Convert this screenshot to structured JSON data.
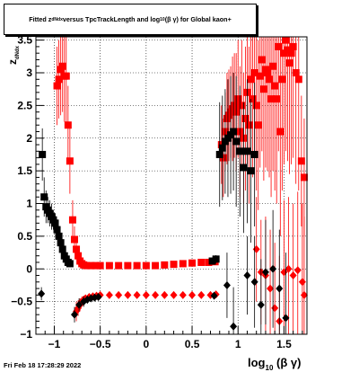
{
  "title": {
    "prefix": "Fitted  z",
    "sub": "dNdx",
    "mid": "  versus TpcTrackLength and log",
    "sub2": "10",
    "suffix": " (β γ) for Global kaon+"
  },
  "footer": "Fri Feb 18 17:28:29 2022",
  "colors": {
    "red": "#ff0000",
    "black": "#000000",
    "grid": "#000000"
  },
  "chart_data": {
    "type": "scatter",
    "title": "Fitted z_dNdx versus TpcTrackLength and log10(β γ) for Global kaon+",
    "xlabel": {
      "main": "log",
      "sub": "10",
      "rest": "(β γ)"
    },
    "ylabel": {
      "main": "z",
      "sub": "dNdx"
    },
    "xlim": [
      -1.2,
      1.75
    ],
    "ylim": [
      -1.0,
      3.55
    ],
    "xticks": [
      -1,
      -0.5,
      0,
      0.5,
      1,
      1.5
    ],
    "xtick_labels": [
      "−1",
      "−0.5",
      "0",
      "0.5",
      "1",
      "1.5"
    ],
    "yticks": [
      -1,
      -0.5,
      0,
      0.5,
      1,
      1.5,
      2,
      2.5,
      3,
      3.5
    ],
    "ytick_labels": [
      "−1",
      "−0.5",
      "0",
      "0.5",
      "1",
      "1.5",
      "2",
      "2.5",
      "3",
      "3.5"
    ],
    "grid": true,
    "series": [
      {
        "color": "#ff0000",
        "marker": "square",
        "points": [
          [
            -0.97,
            2.8,
            0.6
          ],
          [
            -0.95,
            2.9,
            0.6
          ],
          [
            -0.93,
            3.05,
            0.7
          ],
          [
            -0.91,
            3.1,
            0.7
          ],
          [
            -0.89,
            2.95,
            0.7
          ],
          [
            -0.87,
            2.95,
            0.7
          ],
          [
            -0.85,
            2.2,
            0.6
          ],
          [
            -0.83,
            1.65,
            0.5
          ],
          [
            -0.8,
            0.75,
            0.3
          ],
          [
            -0.78,
            0.45,
            0.2
          ],
          [
            -0.76,
            0.3,
            0.15
          ],
          [
            -0.74,
            0.2,
            0.1
          ],
          [
            -0.72,
            0.12,
            0.08
          ],
          [
            -0.7,
            0.08,
            0.06
          ],
          [
            -0.68,
            0.06,
            0.05
          ],
          [
            -0.65,
            0.05,
            0.04
          ],
          [
            -0.6,
            0.05,
            0.03
          ],
          [
            -0.55,
            0.05,
            0.02
          ],
          [
            -0.5,
            0.05,
            0.02
          ],
          [
            -0.4,
            0.05,
            0.02
          ],
          [
            -0.3,
            0.05,
            0.02
          ],
          [
            -0.2,
            0.05,
            0.02
          ],
          [
            -0.1,
            0.05,
            0.02
          ],
          [
            0.0,
            0.05,
            0.02
          ],
          [
            0.1,
            0.05,
            0.02
          ],
          [
            0.2,
            0.06,
            0.02
          ],
          [
            0.3,
            0.07,
            0.02
          ],
          [
            0.4,
            0.08,
            0.02
          ],
          [
            0.5,
            0.09,
            0.02
          ],
          [
            0.6,
            0.1,
            0.03
          ],
          [
            0.68,
            0.1,
            0.03
          ],
          [
            0.75,
            0.11,
            0.04
          ],
          [
            0.82,
            1.9,
            0.6
          ],
          [
            0.84,
            1.7,
            0.6
          ],
          [
            0.86,
            2.1,
            0.6
          ],
          [
            0.88,
            2.3,
            0.7
          ],
          [
            0.9,
            2.35,
            0.7
          ],
          [
            0.92,
            2.4,
            0.7
          ],
          [
            0.94,
            2.45,
            0.8
          ],
          [
            0.96,
            2.5,
            0.8
          ],
          [
            0.98,
            2.4,
            0.9
          ],
          [
            1.0,
            2.6,
            0.9
          ],
          [
            1.02,
            2.1,
            1.0
          ],
          [
            1.04,
            2.5,
            1.0
          ],
          [
            1.06,
            2.0,
            1.0
          ],
          [
            1.08,
            2.3,
            1.1
          ],
          [
            1.1,
            2.7,
            1.1
          ],
          [
            1.12,
            2.2,
            1.2
          ],
          [
            1.14,
            2.9,
            1.2
          ],
          [
            1.16,
            2.6,
            1.2
          ],
          [
            1.18,
            3.0,
            1.3
          ],
          [
            1.2,
            2.5,
            1.3
          ],
          [
            1.22,
            2.2,
            1.3
          ],
          [
            1.24,
            2.95,
            1.4
          ],
          [
            1.26,
            3.2,
            1.4
          ],
          [
            1.28,
            2.75,
            1.4
          ],
          [
            1.3,
            3.05,
            1.5
          ],
          [
            1.32,
            3.0,
            1.5
          ],
          [
            1.34,
            2.9,
            1.5
          ],
          [
            1.36,
            2.6,
            1.5
          ],
          [
            1.38,
            3.1,
            1.6
          ],
          [
            1.4,
            2.8,
            1.6
          ],
          [
            1.42,
            2.6,
            1.6
          ],
          [
            1.44,
            3.4,
            1.6
          ],
          [
            1.46,
            2.1,
            1.6
          ],
          [
            1.48,
            2.9,
            1.7
          ],
          [
            1.5,
            3.3,
            1.7
          ],
          [
            1.52,
            3.5,
            1.7
          ],
          [
            1.54,
            3.35,
            1.7
          ],
          [
            1.56,
            3.15,
            1.7
          ],
          [
            1.58,
            3.3,
            1.7
          ],
          [
            1.6,
            3.4,
            1.7
          ],
          [
            1.63,
            3.0,
            1.7
          ],
          [
            1.66,
            2.9,
            1.7
          ],
          [
            1.69,
            1.65,
            1.0
          ],
          [
            1.72,
            1.4,
            0.9
          ]
        ]
      },
      {
        "color": "#000000",
        "marker": "square",
        "points": [
          [
            -1.13,
            1.75,
            0.4
          ],
          [
            -1.11,
            1.1,
            0.3
          ],
          [
            -1.09,
            0.95,
            0.25
          ],
          [
            -1.07,
            0.9,
            0.2
          ],
          [
            -1.05,
            0.85,
            0.2
          ],
          [
            -1.03,
            0.8,
            0.2
          ],
          [
            -1.01,
            0.75,
            0.15
          ],
          [
            -0.99,
            0.7,
            0.15
          ],
          [
            -0.97,
            0.6,
            0.12
          ],
          [
            -0.95,
            0.5,
            0.1
          ],
          [
            -0.93,
            0.4,
            0.1
          ],
          [
            -0.91,
            0.3,
            0.1
          ],
          [
            -0.89,
            0.2,
            0.08
          ],
          [
            -0.87,
            0.15,
            0.06
          ],
          [
            -0.85,
            0.1,
            0.05
          ],
          [
            -0.83,
            0.08,
            0.05
          ],
          [
            0.72,
            0.12,
            0.05
          ],
          [
            0.76,
            0.15,
            0.06
          ],
          [
            0.8,
            1.75,
            0.8
          ],
          [
            0.83,
            1.85,
            0.8
          ],
          [
            0.86,
            1.95,
            0.8
          ],
          [
            0.89,
            2.0,
            0.9
          ],
          [
            0.92,
            2.05,
            0.9
          ],
          [
            0.95,
            2.1,
            0.9
          ],
          [
            0.98,
            1.95,
            1.0
          ],
          [
            1.02,
            1.8,
            1.0
          ],
          [
            1.06,
            1.55,
            1.0
          ],
          [
            1.1,
            1.8,
            1.1
          ],
          [
            1.14,
            1.5,
            1.1
          ],
          [
            1.18,
            1.75,
            1.1
          ]
        ]
      },
      {
        "color": "#ff0000",
        "marker": "diamond",
        "points": [
          [
            -0.76,
            -0.65,
            0.15
          ],
          [
            -0.74,
            -0.6,
            0.12
          ],
          [
            -0.72,
            -0.55,
            0.1
          ],
          [
            -0.7,
            -0.5,
            0.08
          ],
          [
            -0.68,
            -0.47,
            0.06
          ],
          [
            -0.66,
            -0.45,
            0.05
          ],
          [
            -0.62,
            -0.43,
            0.04
          ],
          [
            -0.58,
            -0.42,
            0.03
          ],
          [
            -0.54,
            -0.41,
            0.03
          ],
          [
            -0.5,
            -0.4,
            0.02
          ],
          [
            -0.4,
            -0.4,
            0.02
          ],
          [
            -0.3,
            -0.4,
            0.02
          ],
          [
            -0.2,
            -0.4,
            0.02
          ],
          [
            -0.1,
            -0.4,
            0.02
          ],
          [
            0.0,
            -0.4,
            0.02
          ],
          [
            0.1,
            -0.4,
            0.02
          ],
          [
            0.2,
            -0.4,
            0.02
          ],
          [
            0.3,
            -0.4,
            0.02
          ],
          [
            0.4,
            -0.4,
            0.02
          ],
          [
            0.5,
            -0.4,
            0.02
          ],
          [
            0.6,
            -0.4,
            0.02
          ],
          [
            0.7,
            -0.4,
            0.03
          ],
          [
            0.76,
            -0.39,
            0.04
          ],
          [
            1.2,
            0.3,
            0.8
          ],
          [
            1.25,
            -0.05,
            0.8
          ],
          [
            1.3,
            -0.1,
            0.9
          ],
          [
            1.35,
            -0.3,
            0.9
          ],
          [
            1.4,
            -0.6,
            1.0
          ],
          [
            1.45,
            -0.8,
            1.0
          ],
          [
            1.5,
            -0.05,
            1.1
          ],
          [
            1.55,
            0.0,
            1.1
          ],
          [
            1.6,
            -0.1,
            1.1
          ],
          [
            1.65,
            -0.02,
            1.2
          ],
          [
            1.7,
            -0.2,
            1.2
          ],
          [
            1.72,
            -0.4,
            1.2
          ]
        ]
      },
      {
        "color": "#000000",
        "marker": "diamond",
        "points": [
          [
            -1.14,
            -0.38,
            0.1
          ],
          [
            -0.78,
            -0.7,
            0.12
          ],
          [
            -0.73,
            -0.55,
            0.1
          ],
          [
            -0.68,
            -0.5,
            0.08
          ],
          [
            -0.64,
            -0.47,
            0.06
          ],
          [
            -0.6,
            -0.45,
            0.05
          ],
          [
            -0.56,
            -0.44,
            0.04
          ],
          [
            -0.52,
            -0.43,
            0.03
          ],
          [
            0.74,
            -0.41,
            0.04
          ],
          [
            0.88,
            -0.25,
            0.5
          ],
          [
            0.95,
            -0.88,
            0.6
          ],
          [
            1.1,
            -0.1,
            0.6
          ],
          [
            1.18,
            -0.2,
            0.7
          ],
          [
            1.25,
            -0.55,
            0.7
          ],
          [
            1.3,
            -0.05,
            0.8
          ],
          [
            1.38,
            0.0,
            0.9
          ],
          [
            1.45,
            -0.3,
            0.9
          ],
          [
            1.52,
            -0.75,
            1.0
          ]
        ]
      }
    ]
  }
}
